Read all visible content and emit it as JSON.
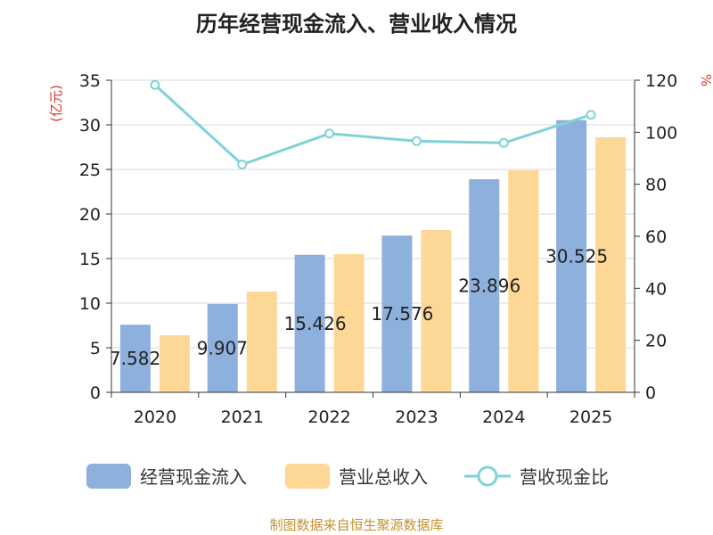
{
  "chart_data": {
    "type": "bar",
    "title": "历年经营现金流入、营业收入情况",
    "categories": [
      "2020",
      "2021",
      "2022",
      "2023",
      "2024",
      "2025"
    ],
    "y_left": {
      "unit": "(亿元)",
      "range": [
        0,
        35
      ],
      "ticks": [
        "0",
        "5",
        "10",
        "15",
        "20",
        "25",
        "30",
        "35"
      ]
    },
    "y_right": {
      "unit": "%",
      "range": [
        0,
        120
      ],
      "ticks": [
        "0",
        "20",
        "40",
        "60",
        "80",
        "100",
        "120"
      ]
    },
    "series": [
      {
        "name": "经营现金流入",
        "kind": "bar",
        "axis": "left",
        "values": [
          7.582,
          9.907,
          15.426,
          17.576,
          23.896,
          30.525
        ],
        "labels": [
          "7.582",
          "9.907",
          "15.426",
          "17.576",
          "23.896",
          "30.525"
        ]
      },
      {
        "name": "营业总收入",
        "kind": "bar",
        "axis": "left",
        "values": [
          6.4,
          11.3,
          15.5,
          18.2,
          24.9,
          28.6
        ]
      },
      {
        "name": "营收现金比",
        "kind": "line",
        "axis": "right",
        "values": [
          118.2,
          87.6,
          99.5,
          96.6,
          95.9,
          106.7
        ]
      }
    ],
    "colors": {
      "cash": "#8eb0dc",
      "revenue": "#fdd796",
      "ratio": "#7fd3d8",
      "unit": "#e0322e",
      "source": "#c4922f",
      "axis": "#333333",
      "grid": "#d9d9d9"
    },
    "source": "制图数据来自恒生聚源数据库"
  }
}
